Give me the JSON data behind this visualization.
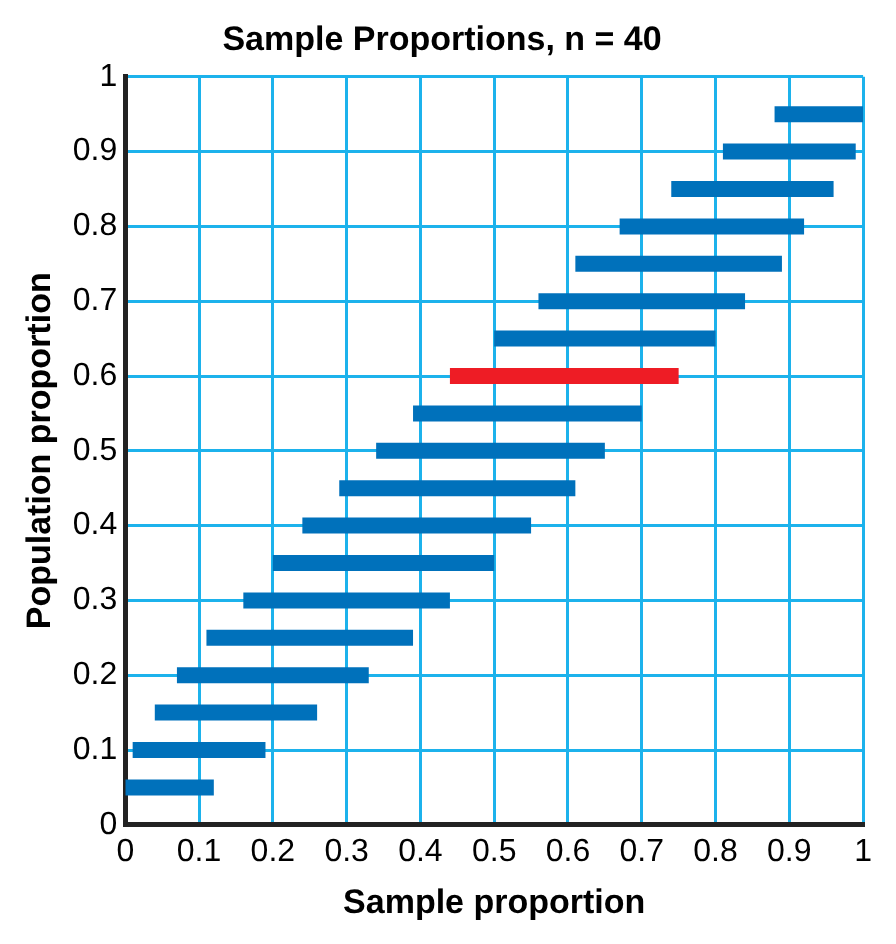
{
  "chart_data": {
    "type": "line",
    "title": "Sample Proportions, n = 40",
    "xlabel": "Sample proportion",
    "ylabel": "Population proportion",
    "series": [
      {
        "color": "#0071bb",
        "x": [
          0,
          0.12
        ],
        "values": [
          0.05,
          0.05
        ]
      },
      {
        "color": "#0071bb",
        "x": [
          0.01,
          0.19
        ],
        "values": [
          0.1,
          0.1
        ]
      },
      {
        "color": "#0071bb",
        "x": [
          0.04,
          0.26
        ],
        "values": [
          0.15,
          0.15
        ]
      },
      {
        "color": "#0071bb",
        "x": [
          0.07,
          0.33
        ],
        "values": [
          0.2,
          0.2
        ]
      },
      {
        "color": "#0071bb",
        "x": [
          0.11,
          0.39
        ],
        "values": [
          0.25,
          0.25
        ]
      },
      {
        "color": "#0071bb",
        "x": [
          0.16,
          0.44
        ],
        "values": [
          0.3,
          0.3
        ]
      },
      {
        "color": "#0071bb",
        "x": [
          0.2,
          0.5
        ],
        "values": [
          0.35,
          0.35
        ]
      },
      {
        "color": "#0071bb",
        "x": [
          0.24,
          0.55
        ],
        "values": [
          0.4,
          0.4
        ]
      },
      {
        "color": "#0071bb",
        "x": [
          0.29,
          0.61
        ],
        "values": [
          0.45,
          0.45
        ]
      },
      {
        "color": "#0071bb",
        "x": [
          0.34,
          0.65
        ],
        "values": [
          0.5,
          0.5
        ]
      },
      {
        "color": "#0071bb",
        "x": [
          0.39,
          0.7
        ],
        "values": [
          0.55,
          0.55
        ]
      },
      {
        "color": "#ee1c25",
        "x": [
          0.44,
          0.75
        ],
        "values": [
          0.6,
          0.6
        ]
      },
      {
        "color": "#0071bb",
        "x": [
          0.5,
          0.8
        ],
        "values": [
          0.65,
          0.65
        ]
      },
      {
        "color": "#0071bb",
        "x": [
          0.56,
          0.84
        ],
        "values": [
          0.7,
          0.7
        ]
      },
      {
        "color": "#0071bb",
        "x": [
          0.61,
          0.89
        ],
        "values": [
          0.75,
          0.75
        ]
      },
      {
        "color": "#0071bb",
        "x": [
          0.67,
          0.92
        ],
        "values": [
          0.8,
          0.8
        ]
      },
      {
        "color": "#0071bb",
        "x": [
          0.74,
          0.96
        ],
        "values": [
          0.85,
          0.85
        ]
      },
      {
        "color": "#0071bb",
        "x": [
          0.81,
          0.99
        ],
        "values": [
          0.9,
          0.9
        ]
      },
      {
        "color": "#0071bb",
        "x": [
          0.88,
          1
        ],
        "values": [
          0.95,
          0.95
        ]
      }
    ],
    "xlim": [
      0,
      1
    ],
    "xticks": [
      0,
      0.1,
      0.2,
      0.3,
      0.4,
      0.5,
      0.6,
      0.7,
      0.8,
      0.9,
      1
    ],
    "ylim": [
      0,
      1
    ],
    "yticks": [
      0,
      0.1,
      0.2,
      0.3,
      0.4,
      0.5,
      0.6,
      0.7,
      0.8,
      0.9,
      1
    ],
    "grid": true,
    "legend": false
  }
}
